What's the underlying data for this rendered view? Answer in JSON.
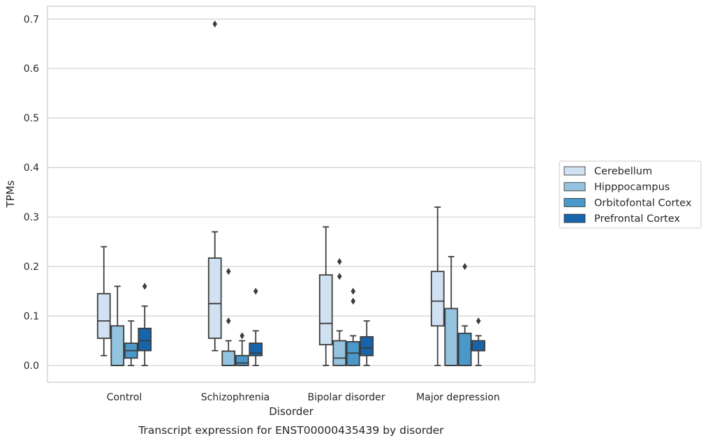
{
  "chart_data": {
    "type": "boxplot",
    "xlabel": "Disorder",
    "ylabel": "TPMs",
    "caption": "Transcript expression for ENST00000435439 by disorder",
    "ylim": [
      -0.034,
      0.725
    ],
    "yticks": [
      0.0,
      0.1,
      0.2,
      0.3,
      0.4,
      0.5,
      0.6,
      0.7
    ],
    "ytick_labels": [
      "0.0",
      "0.1",
      "0.2",
      "0.3",
      "0.4",
      "0.5",
      "0.6",
      "0.7"
    ],
    "grid": "horizontal",
    "legend_position": "right",
    "categories": [
      "Control",
      "Schizophrenia",
      "Bipolar disorder",
      "Major depression"
    ],
    "series": [
      {
        "name": "Cerebellum",
        "color": "#d0e1f2",
        "boxes": [
          {
            "whislo": 0.02,
            "q1": 0.055,
            "med": 0.09,
            "q3": 0.145,
            "whishi": 0.24,
            "fliers": []
          },
          {
            "whislo": 0.03,
            "q1": 0.055,
            "med": 0.125,
            "q3": 0.217,
            "whishi": 0.27,
            "fliers": [
              0.69
            ]
          },
          {
            "whislo": 0.0,
            "q1": 0.042,
            "med": 0.085,
            "q3": 0.183,
            "whishi": 0.28,
            "fliers": []
          },
          {
            "whislo": 0.0,
            "q1": 0.08,
            "med": 0.13,
            "q3": 0.19,
            "whishi": 0.32,
            "fliers": []
          }
        ]
      },
      {
        "name": "Hipppocampus",
        "color": "#94c4df",
        "boxes": [
          {
            "whislo": 0.0,
            "q1": 0.0,
            "med": 0.0,
            "q3": 0.08,
            "whishi": 0.16,
            "fliers": []
          },
          {
            "whislo": 0.0,
            "q1": 0.0,
            "med": 0.0,
            "q3": 0.029,
            "whishi": 0.05,
            "fliers": [
              0.09,
              0.19
            ]
          },
          {
            "whislo": 0.0,
            "q1": 0.0,
            "med": 0.015,
            "q3": 0.05,
            "whishi": 0.07,
            "fliers": [
              0.18,
              0.21
            ]
          },
          {
            "whislo": 0.0,
            "q1": 0.0,
            "med": 0.0,
            "q3": 0.115,
            "whishi": 0.22,
            "fliers": []
          }
        ]
      },
      {
        "name": "Orbitofontal Cortex",
        "color": "#4a98c9",
        "boxes": [
          {
            "whislo": 0.0,
            "q1": 0.015,
            "med": 0.03,
            "q3": 0.045,
            "whishi": 0.09,
            "fliers": []
          },
          {
            "whislo": 0.0,
            "q1": 0.0,
            "med": 0.005,
            "q3": 0.02,
            "whishi": 0.05,
            "fliers": [
              0.06
            ]
          },
          {
            "whislo": 0.0,
            "q1": 0.0,
            "med": 0.025,
            "q3": 0.048,
            "whishi": 0.06,
            "fliers": [
              0.13,
              0.15
            ]
          },
          {
            "whislo": 0.0,
            "q1": 0.0,
            "med": 0.0,
            "q3": 0.065,
            "whishi": 0.08,
            "fliers": [
              0.2
            ]
          }
        ]
      },
      {
        "name": "Prefrontal Cortex",
        "color": "#1764ab",
        "boxes": [
          {
            "whislo": 0.0,
            "q1": 0.03,
            "med": 0.05,
            "q3": 0.075,
            "whishi": 0.12,
            "fliers": [
              0.16
            ]
          },
          {
            "whislo": 0.0,
            "q1": 0.02,
            "med": 0.025,
            "q3": 0.045,
            "whishi": 0.07,
            "fliers": [
              0.15
            ]
          },
          {
            "whislo": 0.0,
            "q1": 0.02,
            "med": 0.035,
            "q3": 0.058,
            "whishi": 0.09,
            "fliers": []
          },
          {
            "whislo": 0.0,
            "q1": 0.03,
            "med": 0.03,
            "q3": 0.05,
            "whishi": 0.06,
            "fliers": [
              0.09
            ]
          }
        ]
      }
    ]
  }
}
